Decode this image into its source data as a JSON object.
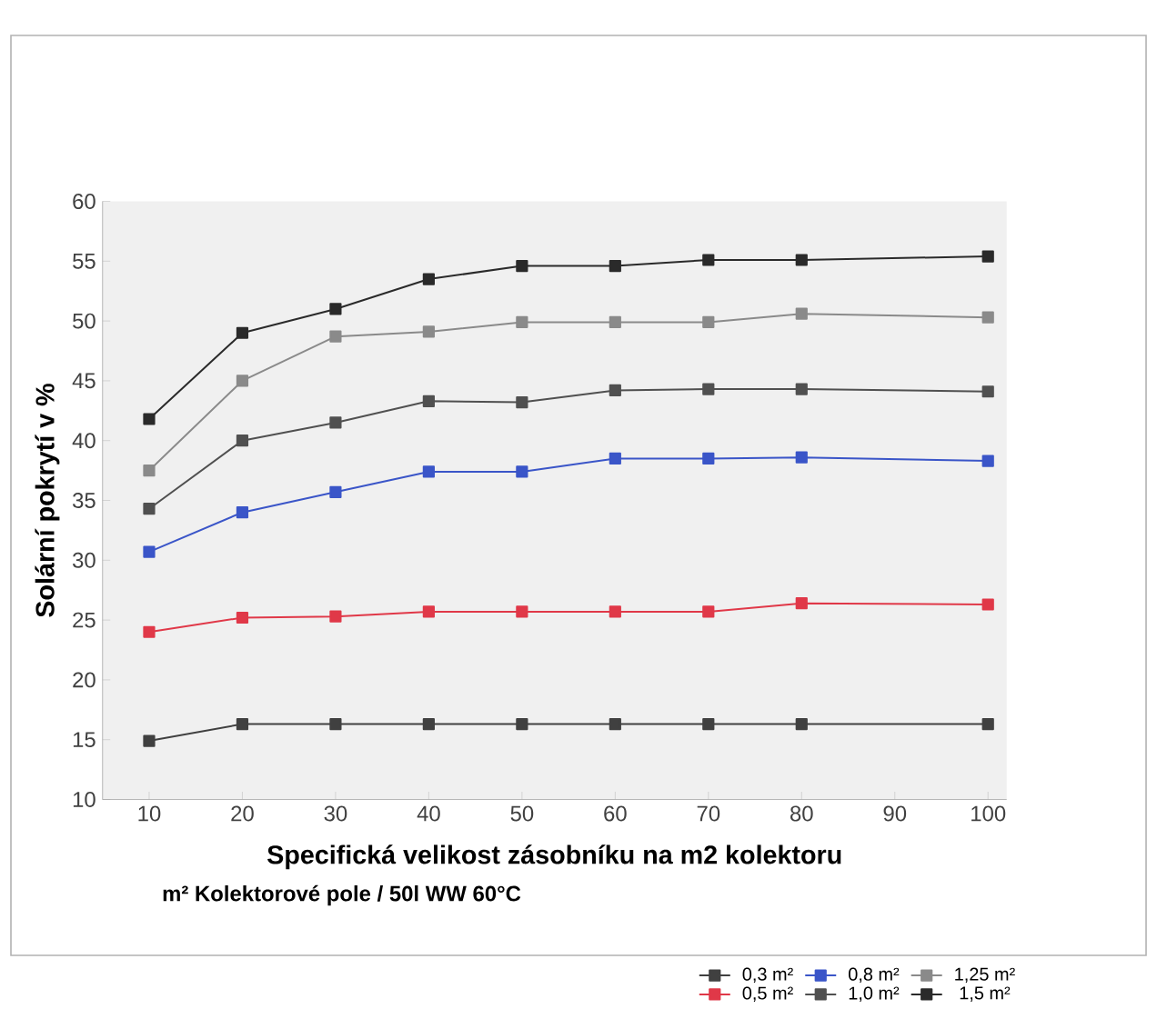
{
  "chart_data": {
    "type": "line",
    "xlabel": "Specifická velikost zásobníku na m2 kolektoru",
    "ylabel": "Solární pokrytí v %",
    "legend_title": "m² Kolektorové pole / 50l WW 60°C",
    "x": [
      10,
      20,
      30,
      40,
      50,
      60,
      70,
      80,
      100
    ],
    "series": [
      {
        "name": "0,3 m²",
        "color": "#404040",
        "values": [
          14.9,
          16.3,
          16.3,
          16.3,
          16.3,
          16.3,
          16.3,
          16.3,
          16.3
        ]
      },
      {
        "name": "0,5 m²",
        "color": "#e03848",
        "values": [
          24.0,
          25.2,
          25.3,
          25.7,
          25.7,
          25.7,
          25.7,
          26.4,
          26.3
        ]
      },
      {
        "name": "0,8 m²",
        "color": "#3a55c8",
        "values": [
          30.7,
          34.0,
          35.7,
          37.4,
          37.4,
          38.5,
          38.5,
          38.6,
          38.3
        ]
      },
      {
        "name": "1,0 m²",
        "color": "#505050",
        "values": [
          34.3,
          40.0,
          41.5,
          43.3,
          43.2,
          44.2,
          44.3,
          44.3,
          44.1
        ]
      },
      {
        "name": "1,25 m²",
        "color": "#8a8a8a",
        "values": [
          37.5,
          45.0,
          48.7,
          49.1,
          49.9,
          49.9,
          49.9,
          50.6,
          50.3
        ]
      },
      {
        "name": "1,5 m²",
        "color": "#2a2a2a",
        "values": [
          41.8,
          49.0,
          51.0,
          53.5,
          54.6,
          54.6,
          55.1,
          55.1,
          55.4
        ]
      }
    ],
    "xlim": [
      5,
      102
    ],
    "xticks": [
      10,
      20,
      30,
      40,
      50,
      60,
      70,
      80,
      90,
      100
    ],
    "ylim": [
      10,
      60
    ],
    "yticks": [
      10,
      15,
      20,
      25,
      30,
      35,
      40,
      45,
      50,
      55,
      60
    ],
    "grid": false,
    "legend": "bottom right",
    "marker": "square",
    "line_style": "solid"
  }
}
